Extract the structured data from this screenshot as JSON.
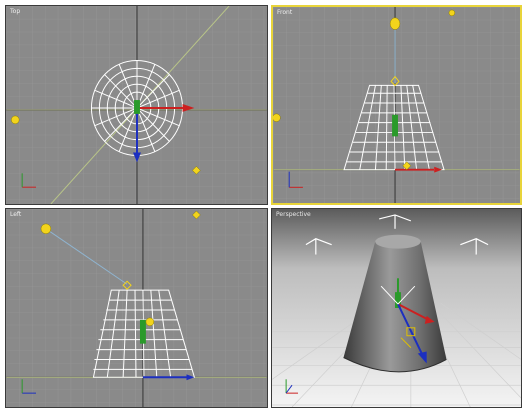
{
  "viewports": {
    "top": {
      "label": "Top"
    },
    "front": {
      "label": "Front"
    },
    "left": {
      "label": "Left"
    },
    "perspective": {
      "label": "Perspective"
    }
  },
  "axis_tripod": {
    "x": "x",
    "y": "y",
    "z": "z"
  },
  "colors": {
    "viewport_bg": "#8a8a8a",
    "grid_line": "#9a9a9a",
    "grid_major": "#333333",
    "wire_white": "#ffffff",
    "active_border": "#e8d43a",
    "light_yellow": "#f2d41c",
    "target_line": "#8fb4d0",
    "axis_x": "#cc2020",
    "axis_y": "#2a9a2a",
    "axis_z": "#1c2fbf"
  }
}
